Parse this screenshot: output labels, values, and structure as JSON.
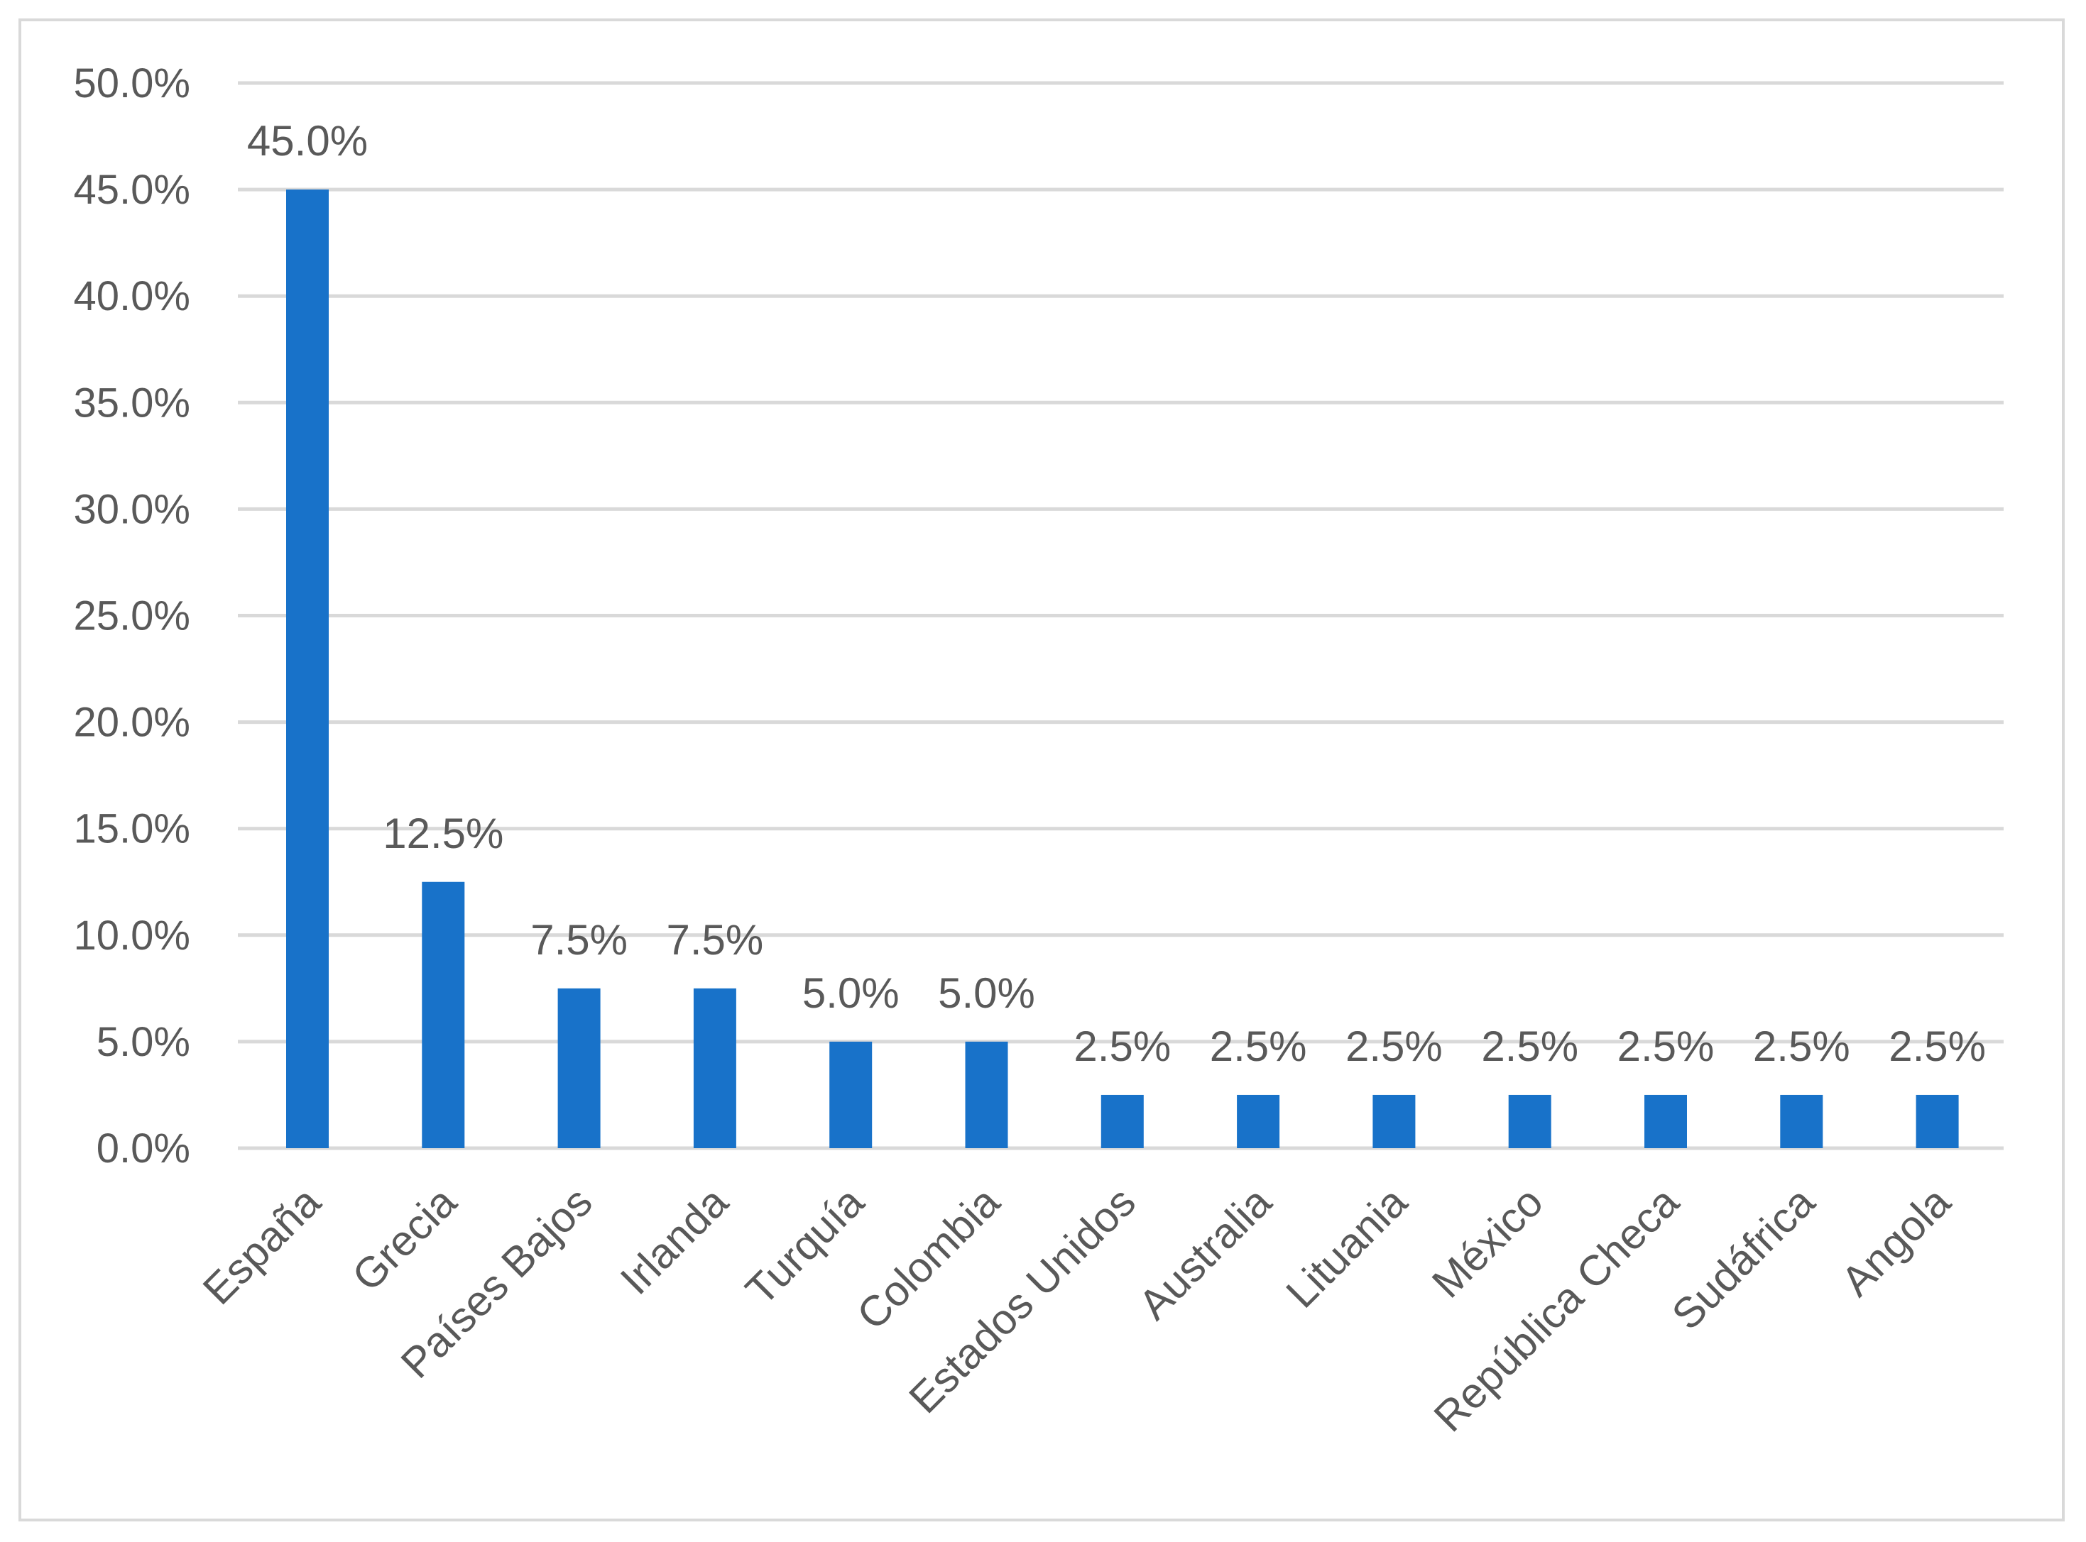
{
  "chart_data": {
    "type": "bar",
    "categories": [
      "España",
      "Grecia",
      "Países Bajos",
      "Irlanda",
      "Turquía",
      "Colombia",
      "Estados Unidos",
      "Australia",
      "Lituania",
      "México",
      "República Checa",
      "Sudáfrica",
      "Angola"
    ],
    "values": [
      45.0,
      12.5,
      7.5,
      7.5,
      5.0,
      5.0,
      2.5,
      2.5,
      2.5,
      2.5,
      2.5,
      2.5,
      2.5
    ],
    "data_labels": [
      "45.0%",
      "12.5%",
      "7.5%",
      "7.5%",
      "5.0%",
      "5.0%",
      "2.5%",
      "2.5%",
      "2.5%",
      "2.5%",
      "2.5%",
      "2.5%",
      "2.5%"
    ],
    "y_ticks": [
      0,
      5,
      10,
      15,
      20,
      25,
      30,
      35,
      40,
      45,
      50
    ],
    "y_tick_labels": [
      "0.0%",
      "5.0%",
      "10.0%",
      "15.0%",
      "20.0%",
      "25.0%",
      "30.0%",
      "35.0%",
      "40.0%",
      "45.0%",
      "50.0%"
    ],
    "ylim": [
      0,
      50
    ],
    "title": "",
    "xlabel": "",
    "ylabel": "",
    "grid": true,
    "legend": "none",
    "bar_color": "#1872c9",
    "grid_color": "#d9d9d9"
  }
}
